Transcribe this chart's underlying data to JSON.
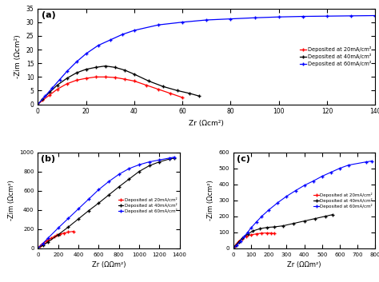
{
  "title_a": "(a)",
  "title_b": "(b)",
  "title_c": "(c)",
  "legend_labels": [
    "Deposited at 20mA/cm²",
    "Deposited at 40mA/cm²",
    "Deposited at 60mA/cm²"
  ],
  "colors": [
    "red",
    "black",
    "blue"
  ],
  "markers": [
    "+",
    "+",
    "+"
  ],
  "ax_a": {
    "xlabel": "Zr (Ωcm²)",
    "ylabel": "-Zim (Ωcm²)",
    "xlim": [
      0,
      140
    ],
    "ylim": [
      0,
      35
    ],
    "xticks": [
      0,
      20,
      40,
      60,
      80,
      100,
      120,
      140
    ],
    "yticks": [
      0,
      5,
      10,
      15,
      20,
      25,
      30,
      35
    ]
  },
  "ax_b": {
    "xlabel": "Zr (ΩΩm²)",
    "ylabel": "-Zim (Ωcm²)",
    "xlim": [
      0,
      1400
    ],
    "ylim": [
      0,
      1000
    ],
    "xticks": [
      0,
      200,
      400,
      600,
      800,
      1000,
      1200,
      1400
    ],
    "yticks": [
      0,
      200,
      400,
      600,
      800,
      1000
    ]
  },
  "ax_c": {
    "xlabel": "Zr (ΩΩm²)",
    "ylabel": "-Zim (Ωcm²)",
    "xlim": [
      0,
      800
    ],
    "ylim": [
      0,
      600
    ],
    "xticks": [
      0,
      100,
      200,
      300,
      400,
      500,
      600,
      700,
      800
    ],
    "yticks": [
      0,
      100,
      200,
      300,
      400,
      500,
      600
    ]
  },
  "a_red_x": [
    0,
    2,
    5,
    8,
    12,
    16,
    20,
    24,
    28,
    32,
    36,
    40,
    45,
    50,
    55,
    60
  ],
  "a_red_y": [
    0,
    1.5,
    3.5,
    5.5,
    7.5,
    8.8,
    9.5,
    10.0,
    10.0,
    9.8,
    9.2,
    8.5,
    7.0,
    5.5,
    4.0,
    2.5
  ],
  "a_black_x": [
    0,
    2,
    5,
    8,
    12,
    16,
    20,
    24,
    28,
    32,
    36,
    40,
    46,
    52,
    58,
    63,
    67
  ],
  "a_black_y": [
    0,
    2,
    4.5,
    7,
    9.5,
    11.5,
    12.8,
    13.5,
    14.0,
    13.5,
    12.5,
    11.0,
    8.5,
    6.5,
    5.0,
    4.0,
    3.0
  ],
  "a_blue_x": [
    0,
    3,
    6,
    9,
    12,
    16,
    20,
    25,
    30,
    35,
    40,
    50,
    60,
    70,
    80,
    90,
    100,
    110,
    120,
    130,
    140
  ],
  "a_blue_y": [
    0,
    3,
    6,
    9,
    12,
    15.5,
    18.5,
    21.5,
    23.5,
    25.5,
    27.0,
    29.0,
    30.0,
    30.8,
    31.2,
    31.6,
    31.9,
    32.1,
    32.2,
    32.3,
    32.4
  ],
  "b_red_x": [
    0,
    20,
    40,
    60,
    80,
    100,
    130,
    160,
    190,
    220,
    260,
    300,
    350
  ],
  "b_red_y": [
    0,
    20,
    40,
    58,
    72,
    85,
    105,
    120,
    135,
    148,
    158,
    168,
    175
  ],
  "b_black_x": [
    0,
    50,
    100,
    200,
    300,
    400,
    500,
    600,
    700,
    800,
    900,
    1000,
    1100,
    1200,
    1300,
    1350
  ],
  "b_black_y": [
    0,
    30,
    65,
    140,
    220,
    305,
    390,
    470,
    555,
    640,
    720,
    800,
    860,
    900,
    930,
    940
  ],
  "b_blue_x": [
    0,
    50,
    100,
    200,
    300,
    400,
    500,
    600,
    700,
    800,
    900,
    1000,
    1100,
    1200,
    1300,
    1350
  ],
  "b_blue_y": [
    0,
    50,
    105,
    210,
    310,
    410,
    510,
    610,
    695,
    770,
    830,
    870,
    900,
    920,
    940,
    950
  ],
  "c_red_x": [
    0,
    10,
    20,
    30,
    50,
    70,
    100,
    130,
    160,
    190,
    210,
    230
  ],
  "c_red_y": [
    0,
    15,
    30,
    45,
    60,
    73,
    83,
    90,
    94,
    95,
    94,
    92
  ],
  "c_black_x": [
    0,
    15,
    30,
    50,
    80,
    110,
    150,
    190,
    230,
    280,
    340,
    400,
    460,
    520,
    560
  ],
  "c_black_y": [
    0,
    20,
    40,
    62,
    88,
    108,
    122,
    130,
    133,
    140,
    155,
    170,
    185,
    200,
    210
  ],
  "c_blue_x": [
    0,
    20,
    40,
    60,
    80,
    100,
    130,
    160,
    200,
    250,
    300,
    350,
    400,
    450,
    500,
    550,
    600,
    650,
    750,
    780
  ],
  "c_blue_y": [
    0,
    20,
    45,
    72,
    100,
    128,
    165,
    200,
    240,
    285,
    325,
    360,
    393,
    420,
    450,
    475,
    500,
    520,
    540,
    545
  ]
}
